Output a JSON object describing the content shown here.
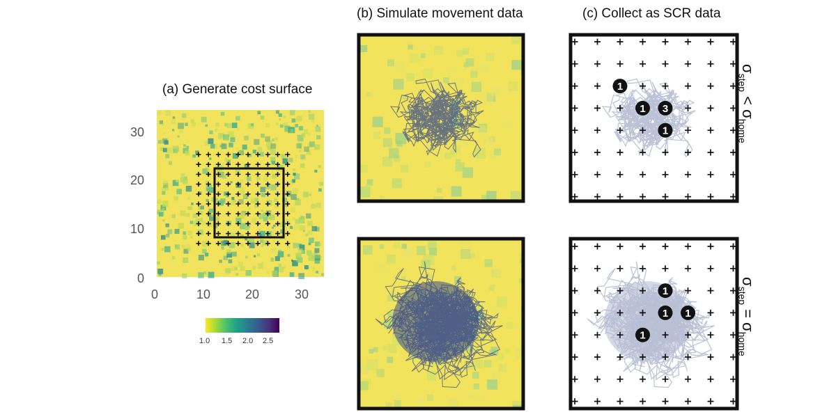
{
  "panels": {
    "a": {
      "title": "(a) Generate cost surface"
    },
    "b": {
      "title": "(b) Simulate movement data"
    },
    "c": {
      "title": "(c) Collect as SCR data"
    }
  },
  "axes": {
    "x_ticks": [
      "0",
      "10",
      "20",
      "30"
    ],
    "y_ticks": [
      "30",
      "20",
      "10",
      "0"
    ]
  },
  "colorbar": {
    "ticks": [
      "1.0",
      "1.5",
      "2.0",
      "2.5"
    ],
    "colors": [
      "#fde725",
      "#a0da39",
      "#4ac16d",
      "#1fa187",
      "#277f8e",
      "#365c8d",
      "#46327e",
      "#440154"
    ]
  },
  "rows": {
    "top": {
      "sigma": "σ",
      "step_sub": "step",
      "relation": " < ",
      "home_sub": "home"
    },
    "bottom": {
      "sigma": "σ",
      "step_sub": "step",
      "relation": " = ",
      "home_sub": "home"
    }
  },
  "detections": {
    "top": [
      {
        "col": 2,
        "row": 2,
        "count": "1"
      },
      {
        "col": 3,
        "row": 3,
        "count": "1"
      },
      {
        "col": 4,
        "row": 3,
        "count": "3"
      },
      {
        "col": 4,
        "row": 4,
        "count": "1"
      }
    ],
    "bottom": [
      {
        "col": 4,
        "row": 2,
        "count": "1"
      },
      {
        "col": 4,
        "row": 3,
        "count": "1"
      },
      {
        "col": 5,
        "row": 3,
        "count": "1"
      },
      {
        "col": 3,
        "row": 4,
        "count": "1"
      }
    ]
  },
  "colors": {
    "track": "#3b4f8a",
    "surface_base": "#f2e35c",
    "frame": "#111111"
  }
}
